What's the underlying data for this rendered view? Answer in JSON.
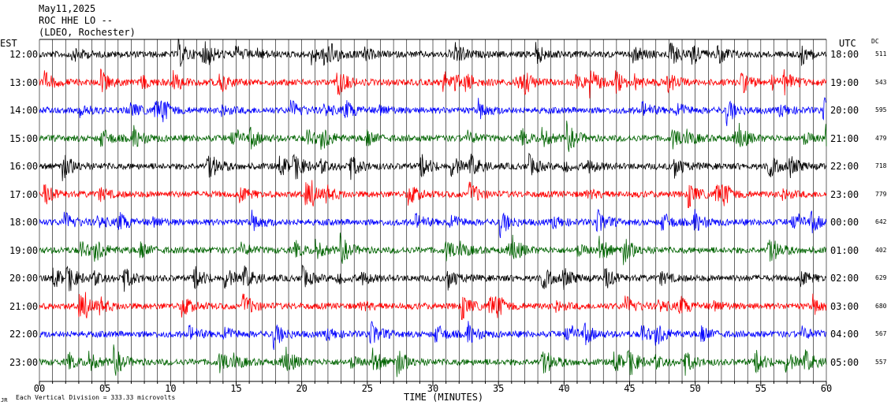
{
  "header": {
    "date": "May11,2025",
    "station": "ROC HHE LO --",
    "network": "(LDEO, Rochester)"
  },
  "left_title": "EST",
  "right_title": "UTC",
  "dc_title": "DC",
  "footer": {
    "scale_text": "Each Vertical Division =  333.33 microvolts",
    "mark": "JR"
  },
  "chart_data": {
    "type": "line",
    "xlabel": "TIME (MINUTES)",
    "xlim": [
      0,
      60
    ],
    "x_ticks": [
      "00",
      "05",
      "10",
      "15",
      "20",
      "25",
      "30",
      "35",
      "40",
      "45",
      "50",
      "55",
      "60"
    ],
    "colors": [
      "#000000",
      "#ff0000",
      "#0000ff",
      "#006400"
    ],
    "traces": [
      {
        "est": "12:00",
        "utc": "18:00",
        "dc": "511",
        "color": "#000000"
      },
      {
        "est": "13:00",
        "utc": "19:00",
        "dc": "543",
        "color": "#ff0000"
      },
      {
        "est": "14:00",
        "utc": "20:00",
        "dc": "595",
        "color": "#0000ff"
      },
      {
        "est": "15:00",
        "utc": "21:00",
        "dc": "479",
        "color": "#006400"
      },
      {
        "est": "16:00",
        "utc": "22:00",
        "dc": "718",
        "color": "#000000"
      },
      {
        "est": "17:00",
        "utc": "23:00",
        "dc": "779",
        "color": "#ff0000"
      },
      {
        "est": "18:00",
        "utc": "00:00",
        "dc": "642",
        "color": "#0000ff"
      },
      {
        "est": "19:00",
        "utc": "01:00",
        "dc": "402",
        "color": "#006400"
      },
      {
        "est": "20:00",
        "utc": "02:00",
        "dc": "629",
        "color": "#000000"
      },
      {
        "est": "21:00",
        "utc": "03:00",
        "dc": "680",
        "color": "#ff0000"
      },
      {
        "est": "22:00",
        "utc": "04:00",
        "dc": "567",
        "color": "#0000ff"
      },
      {
        "est": "23:00",
        "utc": "05:00",
        "dc": "557",
        "color": "#006400"
      }
    ]
  }
}
